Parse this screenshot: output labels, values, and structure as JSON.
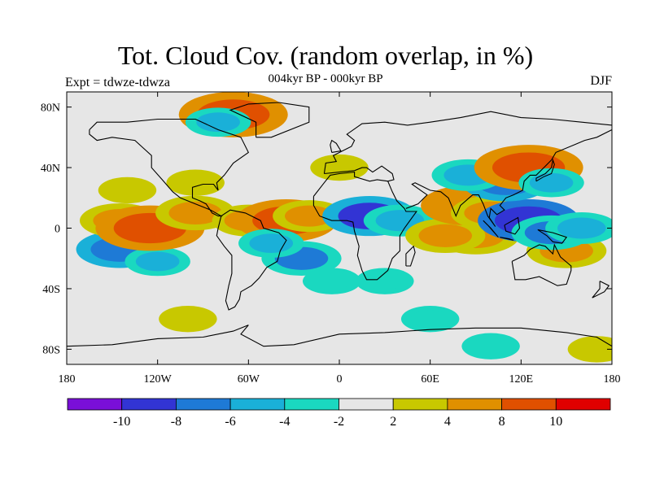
{
  "figure": {
    "title": "Tot. Cloud Cov. (random overlap, in %)",
    "subtitle": "004kyr BP - 000kyr BP",
    "left_label": "Expt = tdwze-tdwza",
    "right_label": "DJF"
  },
  "axes": {
    "x_ticks": [
      "180",
      "120W",
      "60W",
      "0",
      "60E",
      "120E",
      "180"
    ],
    "x_tick_lons": [
      -180,
      -120,
      -60,
      0,
      60,
      120,
      180
    ],
    "y_ticks": [
      "80N",
      "40N",
      "0",
      "40S",
      "80S"
    ],
    "y_tick_lats": [
      80,
      40,
      0,
      -40,
      -80
    ],
    "lon_range": [
      -180,
      180
    ],
    "lat_range": [
      -90,
      90
    ]
  },
  "colorbar": {
    "colors": [
      "#7a0fd8",
      "#3234d4",
      "#1e7ad6",
      "#1ab0d8",
      "#1ad8c0",
      "#e6e6e6",
      "#c8c800",
      "#e09000",
      "#e05000",
      "#e00000"
    ],
    "labels": [
      "-10",
      "-8",
      "-6",
      "-4",
      "-2",
      "2",
      "4",
      "8",
      "10"
    ]
  },
  "chart_data": {
    "type": "heatmap",
    "title": "Tot. Cloud Cov. (random overlap, in %)",
    "subtitle": "004kyr BP - 000kyr BP",
    "season": "DJF",
    "levels": [
      -10,
      -8,
      -6,
      -4,
      -2,
      2,
      4,
      8,
      10
    ],
    "x_range": [
      -180,
      180
    ],
    "y_range": [
      -90,
      90
    ],
    "features": [
      {
        "lon": -145,
        "lat": -14,
        "value": -7
      },
      {
        "lon": -120,
        "lat": -22,
        "value": -4
      },
      {
        "lon": -145,
        "lat": 5,
        "value": 6
      },
      {
        "lon": -125,
        "lat": 0,
        "value": 10
      },
      {
        "lon": -95,
        "lat": 10,
        "value": 6
      },
      {
        "lon": -60,
        "lat": 5,
        "value": 5
      },
      {
        "lon": -35,
        "lat": 5,
        "value": 9
      },
      {
        "lon": -20,
        "lat": 8,
        "value": 5
      },
      {
        "lon": -25,
        "lat": -20,
        "value": -6
      },
      {
        "lon": -45,
        "lat": -10,
        "value": -4
      },
      {
        "lon": 20,
        "lat": 8,
        "value": -8
      },
      {
        "lon": 40,
        "lat": 5,
        "value": -5
      },
      {
        "lon": 90,
        "lat": -5,
        "value": 7
      },
      {
        "lon": 70,
        "lat": -5,
        "value": 6
      },
      {
        "lon": 150,
        "lat": -15,
        "value": 6
      },
      {
        "lon": 85,
        "lat": 15,
        "value": 8
      },
      {
        "lon": 100,
        "lat": 10,
        "value": 6
      },
      {
        "lon": 125,
        "lat": 5,
        "value": -9
      },
      {
        "lon": 140,
        "lat": -3,
        "value": -6
      },
      {
        "lon": 160,
        "lat": 0,
        "value": -5
      },
      {
        "lon": 110,
        "lat": 30,
        "value": -7
      },
      {
        "lon": 85,
        "lat": 35,
        "value": -5
      },
      {
        "lon": 125,
        "lat": 40,
        "value": 10
      },
      {
        "lon": 140,
        "lat": 30,
        "value": -4
      },
      {
        "lon": -70,
        "lat": 75,
        "value": 10
      },
      {
        "lon": -80,
        "lat": 70,
        "value": -4
      },
      {
        "lon": -140,
        "lat": 25,
        "value": 3
      },
      {
        "lon": 0,
        "lat": 40,
        "value": 3
      },
      {
        "lon": -95,
        "lat": 30,
        "value": 3
      },
      {
        "lon": 30,
        "lat": -35,
        "value": -3
      },
      {
        "lon": -5,
        "lat": -35,
        "value": -3
      },
      {
        "lon": 60,
        "lat": -60,
        "value": -3
      },
      {
        "lon": -100,
        "lat": -60,
        "value": 3
      },
      {
        "lon": 170,
        "lat": -80,
        "value": 3
      },
      {
        "lon": 100,
        "lat": -78,
        "value": -3
      }
    ]
  }
}
